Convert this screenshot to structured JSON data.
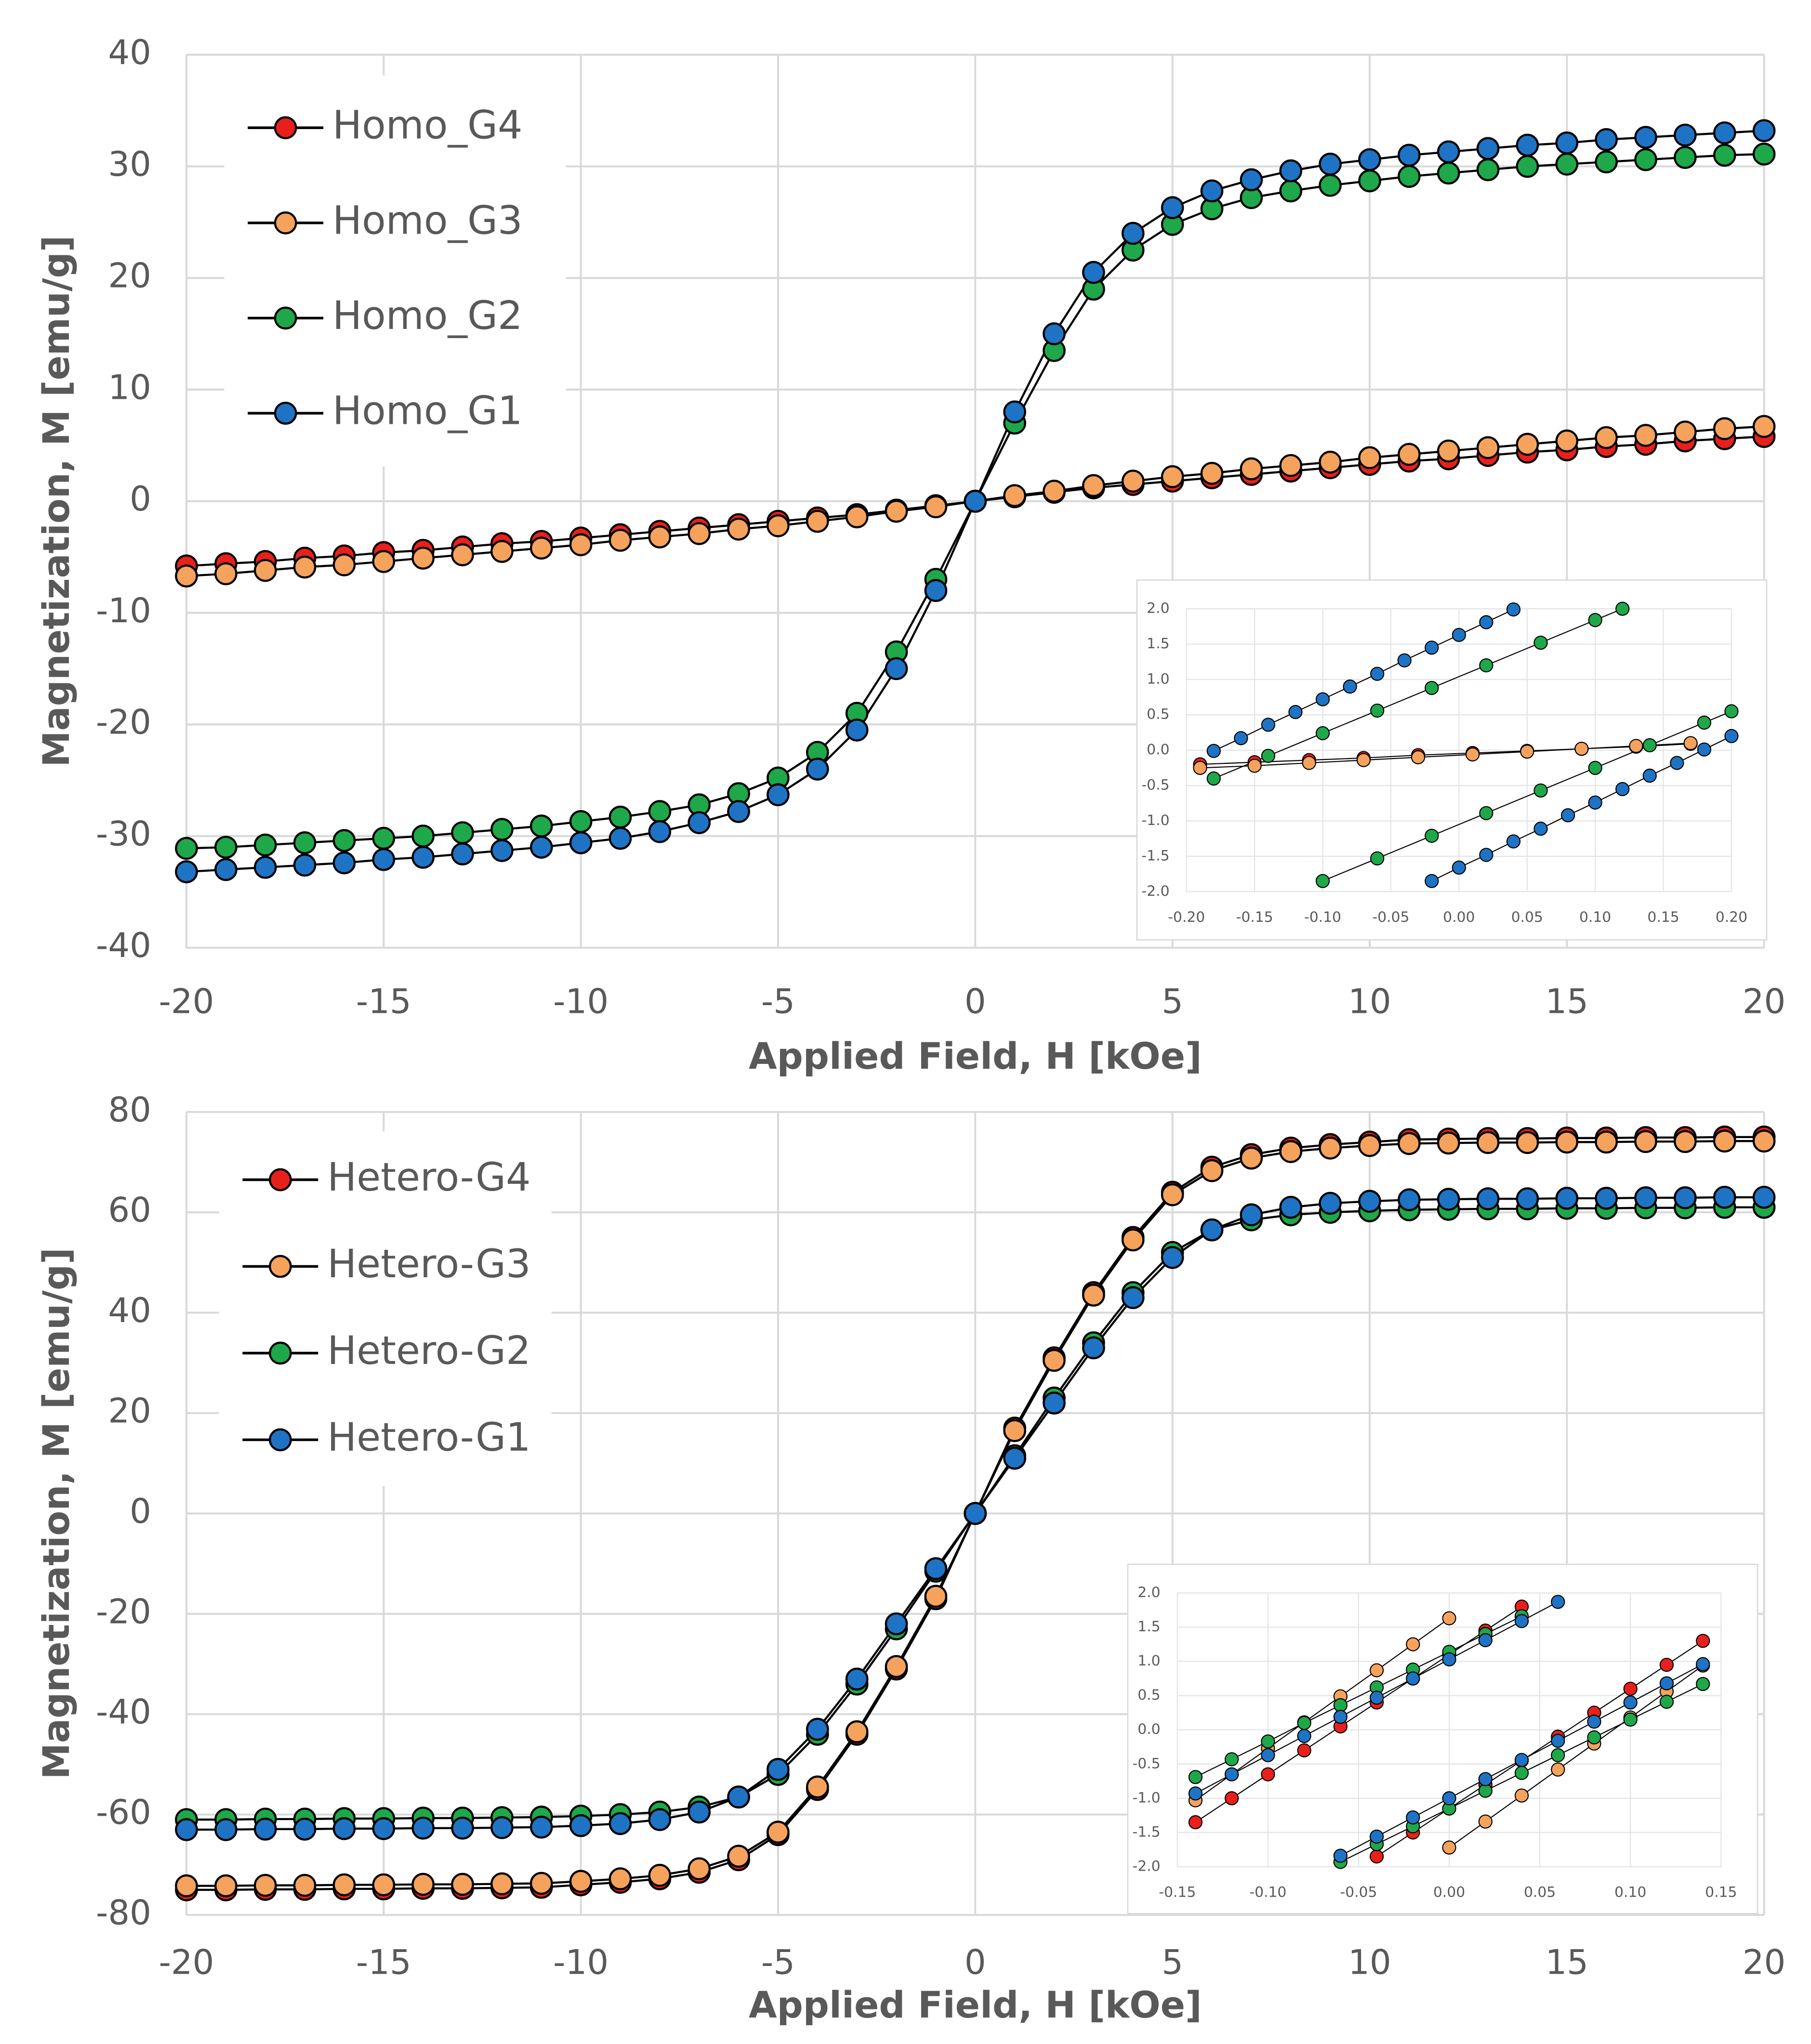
{
  "chart_data": [
    {
      "type": "line",
      "legend": "upper left",
      "grid": true,
      "xlabel": "Applied Field, H [kOe]",
      "ylabel": "Magnetization, M [emu/g]",
      "xlim": [
        -20,
        20
      ],
      "xticks": [
        -20,
        -15,
        -10,
        -5,
        0,
        5,
        10,
        15,
        20
      ],
      "ylim": [
        -40,
        40
      ],
      "yticks": [
        -40,
        -30,
        -20,
        -10,
        0,
        10,
        20,
        30,
        40
      ],
      "x": [
        -20,
        -19,
        -18,
        -17,
        -16,
        -15,
        -14,
        -13,
        -12,
        -11,
        -10,
        -9,
        -8,
        -7,
        -6,
        -5,
        -4,
        -3,
        -2,
        -1,
        0,
        1,
        2,
        3,
        4,
        5,
        6,
        7,
        8,
        9,
        10,
        11,
        12,
        13,
        14,
        15,
        16,
        17,
        18,
        19,
        20
      ],
      "series": [
        {
          "name": "Homo_G4",
          "color": "#e8201c",
          "values": [
            -5.8,
            -5.6,
            -5.4,
            -5.1,
            -4.9,
            -4.6,
            -4.4,
            -4.1,
            -3.8,
            -3.6,
            -3.3,
            -3,
            -2.7,
            -2.4,
            -2.1,
            -1.8,
            -1.5,
            -1.2,
            -0.8,
            -0.4,
            0,
            0.4,
            0.8,
            1.2,
            1.5,
            1.8,
            2.1,
            2.4,
            2.7,
            3,
            3.3,
            3.6,
            3.8,
            4.1,
            4.4,
            4.6,
            4.9,
            5.1,
            5.4,
            5.6,
            5.8
          ]
        },
        {
          "name": "Homo_G3",
          "color": "#f5a25d",
          "values": [
            -6.7,
            -6.5,
            -6.2,
            -5.9,
            -5.7,
            -5.4,
            -5.1,
            -4.8,
            -4.5,
            -4.2,
            -3.9,
            -3.5,
            -3.2,
            -2.9,
            -2.5,
            -2.2,
            -1.8,
            -1.4,
            -0.9,
            -0.5,
            0,
            0.5,
            0.9,
            1.4,
            1.8,
            2.2,
            2.5,
            2.9,
            3.2,
            3.5,
            3.9,
            4.2,
            4.5,
            4.8,
            5.1,
            5.4,
            5.7,
            5.9,
            6.2,
            6.5,
            6.7
          ]
        },
        {
          "name": "Homo_G2",
          "color": "#1ea84a",
          "values": [
            -31.1,
            -31,
            -30.8,
            -30.6,
            -30.4,
            -30.2,
            -30,
            -29.7,
            -29.4,
            -29.1,
            -28.7,
            -28.3,
            -27.8,
            -27.2,
            -26.2,
            -24.8,
            -22.5,
            -19,
            -13.5,
            -7,
            0,
            7,
            13.5,
            19,
            22.5,
            24.8,
            26.2,
            27.2,
            27.8,
            28.3,
            28.7,
            29.1,
            29.4,
            29.7,
            30,
            30.2,
            30.4,
            30.6,
            30.8,
            31,
            31.1
          ]
        },
        {
          "name": "Homo_G1",
          "color": "#1f73c4",
          "values": [
            -33.2,
            -33,
            -32.8,
            -32.6,
            -32.4,
            -32.1,
            -31.9,
            -31.6,
            -31.3,
            -31,
            -30.6,
            -30.2,
            -29.6,
            -28.8,
            -27.8,
            -26.3,
            -24,
            -20.5,
            -15,
            -8,
            0,
            8,
            15,
            20.5,
            24,
            26.3,
            27.8,
            28.8,
            29.6,
            30.2,
            30.6,
            31,
            31.3,
            31.6,
            31.9,
            32.1,
            32.4,
            32.6,
            32.8,
            33,
            33.2
          ]
        }
      ]
    },
    {
      "type": "line",
      "grid": true,
      "xlim": [
        -0.2,
        0.2
      ],
      "xticks": [
        {
          "value": -0.2,
          "label": "-0.20"
        },
        {
          "value": -0.15,
          "label": "-0.15"
        },
        {
          "value": -0.1,
          "label": "-0.10"
        },
        {
          "value": -0.05,
          "label": "-0.05"
        },
        {
          "value": 0,
          "label": "0.00"
        },
        {
          "value": 0.05,
          "label": "0.05"
        },
        {
          "value": 0.1,
          "label": "0.10"
        },
        {
          "value": 0.15,
          "label": "0.15"
        },
        {
          "value": 0.2,
          "label": "0.20"
        }
      ],
      "ylim": [
        -2,
        2
      ],
      "yticks": [
        {
          "value": -2,
          "label": "-2.0"
        },
        {
          "value": -1.5,
          "label": "-1.5"
        },
        {
          "value": -1,
          "label": "-1.0"
        },
        {
          "value": -0.5,
          "label": "-0.5"
        },
        {
          "value": 0,
          "label": "0.0"
        },
        {
          "value": 0.5,
          "label": "0.5"
        },
        {
          "value": 1,
          "label": "1.0"
        },
        {
          "value": 1.5,
          "label": "1.5"
        },
        {
          "value": 2,
          "label": "2.0"
        }
      ],
      "series": [
        {
          "color": "#e8201c",
          "x": [
            -0.19,
            -0.15,
            -0.11,
            -0.07,
            -0.03,
            0.01,
            0.05,
            0.09,
            0.13,
            0.17
          ],
          "values": [
            -0.2,
            -0.17,
            -0.14,
            -0.11,
            -0.07,
            -0.04,
            -0.01,
            0.02,
            0.05,
            0.09
          ]
        },
        {
          "color": "#f5a25d",
          "x": [
            -0.19,
            -0.15,
            -0.11,
            -0.07,
            -0.03,
            0.01,
            0.05,
            0.09,
            0.13,
            0.17
          ],
          "values": [
            -0.25,
            -0.22,
            -0.18,
            -0.14,
            -0.1,
            -0.06,
            -0.02,
            0.02,
            0.06,
            0.1
          ]
        },
        {
          "color": "#1ea84a",
          "x": [
            -0.18,
            -0.14,
            -0.1,
            -0.06,
            -0.02,
            0.02,
            0.06,
            0.1,
            0.12,
            null,
            -0.1,
            -0.06,
            -0.02,
            0.02,
            0.06,
            0.1,
            0.14,
            0.18,
            0.2
          ],
          "values": [
            -0.4,
            -0.08,
            0.24,
            0.56,
            0.88,
            1.2,
            1.52,
            1.84,
            2,
            null,
            -1.85,
            -1.53,
            -1.21,
            -0.89,
            -0.57,
            -0.25,
            0.07,
            0.39,
            0.55
          ]
        },
        {
          "color": "#1f73c4",
          "x": [
            -0.18,
            -0.16,
            -0.14,
            -0.12,
            -0.1,
            -0.08,
            -0.06,
            -0.04,
            -0.02,
            0,
            0.02,
            0.04,
            null,
            -0.02,
            0,
            0.02,
            0.04,
            0.06,
            0.08,
            0.1,
            0.12,
            0.14,
            0.16,
            0.18,
            0.2
          ],
          "values": [
            -0.01,
            0.17,
            0.36,
            0.54,
            0.72,
            0.9,
            1.08,
            1.27,
            1.45,
            1.63,
            1.81,
            1.99,
            null,
            -1.85,
            -1.66,
            -1.48,
            -1.29,
            -1.11,
            -0.92,
            -0.74,
            -0.55,
            -0.36,
            -0.18,
            0.01,
            0.2
          ]
        }
      ]
    },
    {
      "type": "line",
      "legend": "upper left",
      "grid": true,
      "xlabel": "Applied Field, H [kOe]",
      "ylabel": "Magnetization, M [emu/g]",
      "xlim": [
        -20,
        20
      ],
      "xticks": [
        -20,
        -15,
        -10,
        -5,
        0,
        5,
        10,
        15,
        20
      ],
      "ylim": [
        -80,
        80
      ],
      "yticks": [
        -80,
        -60,
        -40,
        -20,
        0,
        20,
        40,
        60,
        80
      ],
      "x": [
        -20,
        -19,
        -18,
        -17,
        -16,
        -15,
        -14,
        -13,
        -12,
        -11,
        -10,
        -9,
        -8,
        -7,
        -6,
        -5,
        -4,
        -3,
        -2,
        -1,
        0,
        1,
        2,
        3,
        4,
        5,
        6,
        7,
        8,
        9,
        10,
        11,
        12,
        13,
        14,
        15,
        16,
        17,
        18,
        19,
        20
      ],
      "series": [
        {
          "name": "Hetero-G4",
          "color": "#e8201c",
          "values": [
            -75,
            -75,
            -74.9,
            -74.9,
            -74.8,
            -74.8,
            -74.7,
            -74.7,
            -74.6,
            -74.5,
            -74,
            -73.5,
            -72.8,
            -71.5,
            -69,
            -64,
            -55,
            -44,
            -31,
            -17,
            0,
            17,
            31,
            44,
            55,
            64,
            69,
            71.5,
            72.8,
            73.5,
            74,
            74.5,
            74.6,
            74.7,
            74.7,
            74.8,
            74.8,
            74.9,
            74.9,
            75,
            75
          ]
        },
        {
          "name": "Hetero-G3",
          "color": "#f5a25d",
          "values": [
            -74.2,
            -74.2,
            -74.1,
            -74.1,
            -74,
            -74,
            -73.9,
            -73.9,
            -73.8,
            -73.7,
            -73.3,
            -72.8,
            -72.1,
            -70.8,
            -68.3,
            -63.5,
            -54.5,
            -43.5,
            -30.5,
            -16.5,
            0,
            16.5,
            30.5,
            43.5,
            54.5,
            63.5,
            68.3,
            70.8,
            72.1,
            72.8,
            73.3,
            73.7,
            73.8,
            73.9,
            73.9,
            74,
            74,
            74.1,
            74.1,
            74.2,
            74.2
          ]
        },
        {
          "name": "Hetero-G2",
          "color": "#1ea84a",
          "values": [
            -61,
            -61,
            -60.9,
            -60.9,
            -60.8,
            -60.8,
            -60.7,
            -60.7,
            -60.6,
            -60.5,
            -60.3,
            -60,
            -59.5,
            -58.5,
            -56.5,
            -52,
            -44,
            -34,
            -23,
            -11.5,
            0,
            11.5,
            23,
            34,
            44,
            52,
            56.5,
            58.5,
            59.5,
            60,
            60.3,
            60.5,
            60.6,
            60.7,
            60.7,
            60.8,
            60.8,
            60.9,
            60.9,
            61,
            61
          ]
        },
        {
          "name": "Hetero-G1",
          "color": "#1f73c4",
          "values": [
            -63,
            -63,
            -62.9,
            -62.9,
            -62.8,
            -62.8,
            -62.7,
            -62.7,
            -62.6,
            -62.5,
            -62.2,
            -61.8,
            -61,
            -59.5,
            -56.5,
            -51,
            -43,
            -33,
            -22,
            -11,
            0,
            11,
            22,
            33,
            43,
            51,
            56.5,
            59.5,
            61,
            61.8,
            62.2,
            62.5,
            62.6,
            62.7,
            62.7,
            62.8,
            62.8,
            62.9,
            62.9,
            63,
            63
          ]
        }
      ]
    },
    {
      "type": "line",
      "grid": true,
      "xlim": [
        -0.15,
        0.15
      ],
      "xticks": [
        {
          "value": -0.15,
          "label": "-0.15"
        },
        {
          "value": -0.1,
          "label": "-0.10"
        },
        {
          "value": -0.05,
          "label": "-0.05"
        },
        {
          "value": 0,
          "label": "0.00"
        },
        {
          "value": 0.05,
          "label": "0.05"
        },
        {
          "value": 0.1,
          "label": "0.10"
        },
        {
          "value": 0.15,
          "label": "0.15"
        }
      ],
      "ylim": [
        -2,
        2
      ],
      "yticks": [
        {
          "value": -2,
          "label": "-2.0"
        },
        {
          "value": -1.5,
          "label": "-1.5"
        },
        {
          "value": -1,
          "label": "-1.0"
        },
        {
          "value": -0.5,
          "label": "-0.5"
        },
        {
          "value": 0,
          "label": "0.0"
        },
        {
          "value": 0.5,
          "label": "0.5"
        },
        {
          "value": 1,
          "label": "1.0"
        },
        {
          "value": 1.5,
          "label": "1.5"
        },
        {
          "value": 2,
          "label": "2.0"
        }
      ],
      "series": [
        {
          "color": "#e8201c",
          "x": [
            -0.14,
            -0.12,
            -0.1,
            -0.08,
            -0.06,
            -0.04,
            -0.02,
            0,
            0.02,
            0.04,
            null,
            -0.04,
            -0.02,
            0,
            0.02,
            0.04,
            0.06,
            0.08,
            0.1,
            0.12,
            0.14
          ],
          "values": [
            -1.35,
            -1,
            -0.65,
            -0.3,
            0.05,
            0.4,
            0.75,
            1.1,
            1.45,
            1.8,
            null,
            -1.85,
            -1.5,
            -1.15,
            -0.8,
            -0.45,
            -0.1,
            0.25,
            0.6,
            0.95,
            1.3
          ]
        },
        {
          "color": "#f5a25d",
          "x": [
            -0.14,
            -0.12,
            -0.1,
            -0.08,
            -0.06,
            -0.04,
            -0.02,
            0,
            null,
            0,
            0.02,
            0.04,
            0.06,
            0.08,
            0.1,
            0.12,
            0.14
          ],
          "values": [
            -1.03,
            -0.65,
            -0.27,
            0.11,
            0.49,
            0.87,
            1.25,
            1.63,
            null,
            -1.72,
            -1.34,
            -0.96,
            -0.58,
            -0.2,
            0.18,
            0.56,
            0.94
          ]
        },
        {
          "color": "#1ea84a",
          "x": [
            -0.14,
            -0.12,
            -0.1,
            -0.08,
            -0.06,
            -0.04,
            -0.02,
            0,
            0.02,
            0.04,
            null,
            -0.06,
            -0.04,
            -0.02,
            0,
            0.02,
            0.04,
            0.06,
            0.08,
            0.1,
            0.12,
            0.14
          ],
          "values": [
            -0.69,
            -0.43,
            -0.17,
            0.1,
            0.36,
            0.62,
            0.88,
            1.14,
            1.4,
            1.66,
            null,
            -1.93,
            -1.67,
            -1.41,
            -1.15,
            -0.89,
            -0.63,
            -0.37,
            -0.11,
            0.15,
            0.41,
            0.67
          ]
        },
        {
          "color": "#1f73c4",
          "x": [
            -0.14,
            -0.12,
            -0.1,
            -0.08,
            -0.06,
            -0.04,
            -0.02,
            0,
            0.02,
            0.04,
            0.06,
            null,
            -0.06,
            -0.04,
            -0.02,
            0,
            0.02,
            0.04,
            0.06,
            0.08,
            0.1,
            0.12,
            0.14
          ],
          "values": [
            -0.93,
            -0.65,
            -0.37,
            -0.09,
            0.19,
            0.47,
            0.75,
            1.03,
            1.31,
            1.59,
            1.87,
            null,
            -1.84,
            -1.56,
            -1.28,
            -1,
            -0.72,
            -0.44,
            -0.16,
            0.12,
            0.4,
            0.68,
            0.96
          ]
        }
      ]
    }
  ]
}
